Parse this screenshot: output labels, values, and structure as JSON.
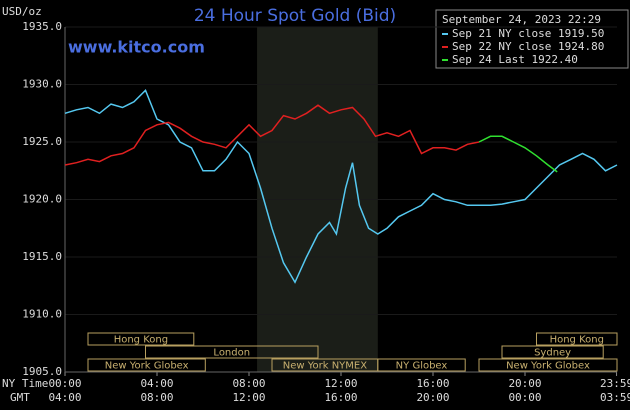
{
  "chart_data": {
    "type": "line",
    "title": "24 Hour Spot Gold (Bid)",
    "y_label": "USD/oz",
    "watermark": "www.kitco.com",
    "date": "September 24, 2023 22:29",
    "x_row_labels": [
      "NY Time",
      "GMT"
    ],
    "xlim": [
      0,
      24
    ],
    "xticks": [
      {
        "value": 0,
        "label": "00:00"
      },
      {
        "value": 4,
        "label": "04:00"
      },
      {
        "value": 8,
        "label": "08:00"
      },
      {
        "value": 12,
        "label": "12:00"
      },
      {
        "value": 16,
        "label": "16:00"
      },
      {
        "value": 20,
        "label": "20:00"
      },
      {
        "value": 23.98,
        "label": "23:59"
      }
    ],
    "gmt_tick_labels": [
      "04:00",
      "08:00",
      "12:00",
      "16:00",
      "20:00",
      "00:00",
      "03:59"
    ],
    "ylim": [
      1905,
      1935
    ],
    "yticks": [
      {
        "value": 1905,
        "label": "1905.0"
      },
      {
        "value": 1910,
        "label": "1910.0"
      },
      {
        "value": 1915,
        "label": "1915.0"
      },
      {
        "value": 1920,
        "label": "1920.0"
      },
      {
        "value": 1925,
        "label": "1925.0"
      },
      {
        "value": 1930,
        "label": "1930.0"
      },
      {
        "value": 1935,
        "label": "1935.0"
      }
    ],
    "highlight": [
      8.35,
      13.6
    ],
    "session_rows": [
      [
        {
          "label": "Hong Kong",
          "start": 1,
          "end": 5.6
        },
        {
          "label": "Hong Kong",
          "start": 20.5,
          "end": 24
        }
      ],
      [
        {
          "label": "London",
          "start": 3.5,
          "end": 11
        },
        {
          "label": "Sydney",
          "start": 19,
          "end": 23.4
        }
      ],
      [
        {
          "label": "New York Globex",
          "start": 1,
          "end": 6.1
        },
        {
          "label": "New York NYMEX",
          "start": 9,
          "end": 13.6
        },
        {
          "label": "NY Globex",
          "start": 13.6,
          "end": 17.4
        },
        {
          "label": "New York Globex",
          "start": 18,
          "end": 24
        }
      ]
    ],
    "series": [
      {
        "name": "Sep 21 NY close 1919.50",
        "color": "#55c8f0",
        "x": [
          0,
          0.5,
          1,
          1.5,
          2,
          2.5,
          3,
          3.5,
          4,
          4.5,
          5,
          5.5,
          6,
          6.5,
          7,
          7.5,
          8,
          8.5,
          9,
          9.5,
          10,
          10.5,
          11,
          11.5,
          11.8,
          12.2,
          12.5,
          12.8,
          13.2,
          13.6,
          14,
          14.5,
          15,
          15.5,
          16,
          16.5,
          17,
          17.5,
          18,
          18.5,
          19,
          19.5,
          20,
          20.5,
          21,
          21.5,
          22,
          22.5,
          23,
          23.5,
          24
        ],
        "values": [
          1927.5,
          1927.8,
          1928,
          1927.5,
          1928.3,
          1928,
          1928.5,
          1929.5,
          1927,
          1926.5,
          1925,
          1924.5,
          1922.5,
          1922.5,
          1923.5,
          1925,
          1924,
          1921,
          1917.5,
          1914.5,
          1912.8,
          1915,
          1917,
          1918,
          1917,
          1921,
          1923.2,
          1919.5,
          1917.5,
          1917,
          1917.5,
          1918.5,
          1919,
          1919.5,
          1920.5,
          1920,
          1919.8,
          1919.5,
          1919.5,
          1919.5,
          1919.6,
          1919.8,
          1920,
          1921,
          1922,
          1923,
          1923.5,
          1924,
          1923.5,
          1922.5,
          1923
        ]
      },
      {
        "name": "Sep 22 NY close 1924.80",
        "color": "#e02020",
        "x": [
          0,
          0.5,
          1,
          1.5,
          2,
          2.5,
          3,
          3.5,
          4,
          4.5,
          5,
          5.5,
          6,
          6.5,
          7,
          7.5,
          8,
          8.5,
          9,
          9.5,
          10,
          10.5,
          11,
          11.5,
          12,
          12.5,
          13,
          13.5,
          14,
          14.5,
          15,
          15.5,
          16,
          16.5,
          17,
          17.5,
          18
        ],
        "values": [
          1923,
          1923.2,
          1923.5,
          1923.3,
          1923.8,
          1924,
          1924.5,
          1926,
          1926.5,
          1926.7,
          1926.2,
          1925.5,
          1925,
          1924.8,
          1924.5,
          1925.5,
          1926.5,
          1925.5,
          1926,
          1927.3,
          1927,
          1927.5,
          1928.2,
          1927.5,
          1927.8,
          1928,
          1927,
          1925.5,
          1925.8,
          1925.5,
          1926,
          1924,
          1924.5,
          1924.5,
          1924.3,
          1924.8,
          1925
        ]
      },
      {
        "name": "Sep 24 Last 1922.40",
        "color": "#30e030",
        "x": [
          18,
          18.5,
          19,
          19.5,
          20,
          20.5,
          21,
          21.4
        ],
        "values": [
          1925,
          1925.5,
          1925.5,
          1925,
          1924.5,
          1923.8,
          1923,
          1922.4
        ]
      }
    ]
  }
}
